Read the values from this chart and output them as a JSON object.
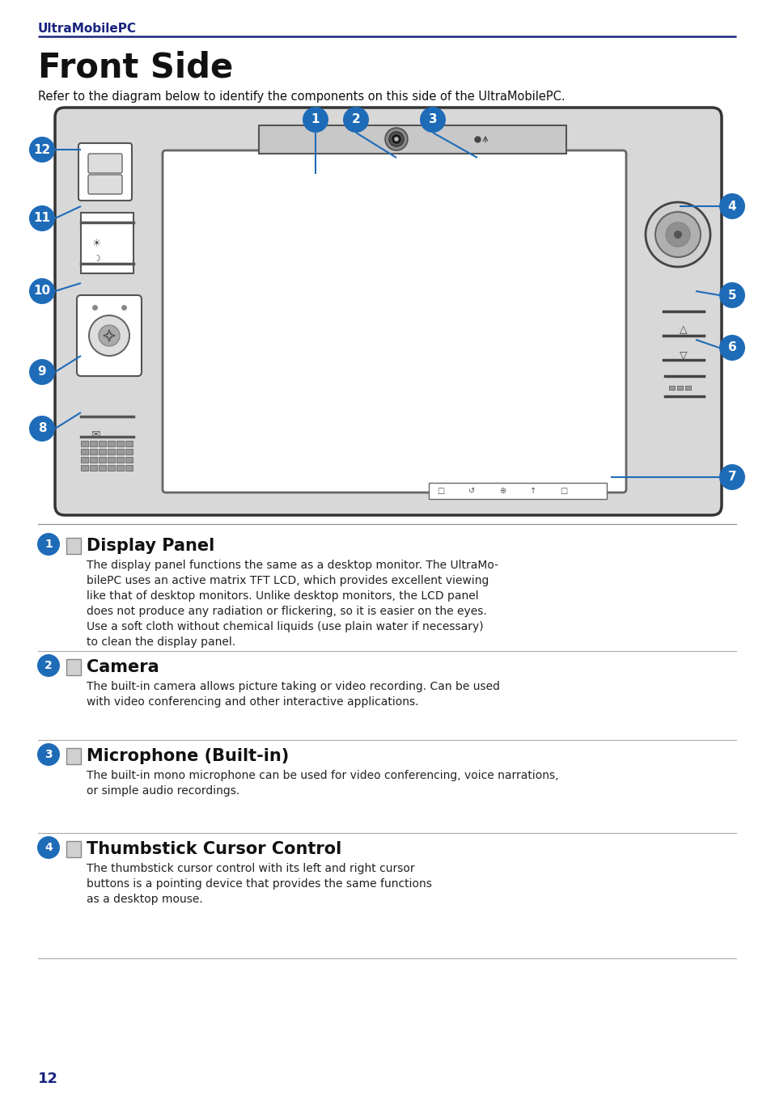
{
  "header_text": "UltraMobilePC",
  "dark_blue": "#1a237e",
  "blue": "#1e6bb8",
  "title": "Front Side",
  "subtitle": "Refer to the diagram below to identify the components on this side of the UltraMobilePC.",
  "page_number": "12",
  "bg_color": "#ffffff",
  "sections": [
    {
      "num": "1",
      "title": "Display Panel",
      "body": "The display panel functions the same as a desktop monitor. The UltraMo-\nbilePC uses an active matrix TFT LCD, which provides excellent viewing\nlike that of desktop monitors. Unlike desktop monitors, the LCD panel\ndoes not produce any radiation or flickering, so it is easier on the eyes.\nUse a soft cloth without chemical liquids (use plain water if necessary)\nto clean the display panel."
    },
    {
      "num": "2",
      "title": "Camera",
      "body": "The built-in camera allows picture taking or video recording. Can be used\nwith video conferencing and other interactive applications."
    },
    {
      "num": "3",
      "title": "Microphone (Built-in)",
      "body": "The built-in mono microphone can be used for video conferencing, voice narrations,\nor simple audio recordings."
    },
    {
      "num": "4",
      "title": "Thumbstick Cursor Control",
      "body": "The thumbstick cursor control with its left and right cursor\nbuttons is a pointing device that provides the same functions\nas a desktop mouse."
    }
  ]
}
